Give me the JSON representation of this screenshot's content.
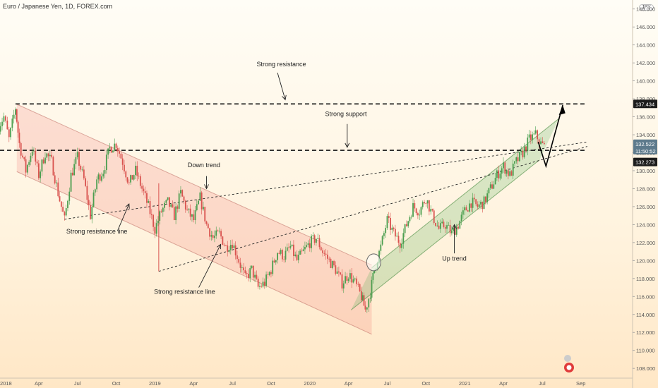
{
  "header": {
    "title": "Euro / Japanese Yen, 1D, FOREX.com",
    "currency": "JPY"
  },
  "chart_data": {
    "type": "candlestick",
    "y_axis": {
      "ticks": [
        108.0,
        110.0,
        112.0,
        114.0,
        116.0,
        118.0,
        120.0,
        122.0,
        124.0,
        126.0,
        128.0,
        130.0,
        132.0,
        134.0,
        136.0,
        138.0,
        140.0,
        142.0,
        144.0,
        146.0,
        148.0
      ],
      "tick_labels": [
        "108.000",
        "110.000",
        "112.000",
        "114.000",
        "116.000",
        "118.000",
        "120.000",
        "122.000",
        "124.000",
        "126.000",
        "128.000",
        "130.000",
        "132.000",
        "134.000",
        "136.000",
        "138.000",
        "140.000",
        "142.000",
        "144.000",
        "146.000",
        "148.000"
      ],
      "ylim": [
        106.6,
        149.0
      ]
    },
    "x_axis": {
      "ticks": [
        0,
        3,
        6,
        9,
        12,
        15,
        18,
        21,
        24,
        27,
        30,
        33,
        36,
        39,
        42,
        45
      ],
      "tick_labels": [
        "2018",
        "Apr",
        "Jul",
        "Oct",
        "2019",
        "Apr",
        "Jul",
        "Oct",
        "2020",
        "Apr",
        "Jul",
        "Oct",
        "2021",
        "Apr",
        "Jul",
        "Sep"
      ],
      "xlim": [
        0,
        48.9
      ]
    },
    "price_path": [
      [
        -0.1,
        135.0
      ],
      [
        0.3,
        136.0
      ],
      [
        0.7,
        133.5
      ],
      [
        1.2,
        137.0
      ],
      [
        1.5,
        133.0
      ],
      [
        2.0,
        130.0
      ],
      [
        2.5,
        132.5
      ],
      [
        3.0,
        129.5
      ],
      [
        3.5,
        132.0
      ],
      [
        4.0,
        131.0
      ],
      [
        4.5,
        127.5
      ],
      [
        5.0,
        124.5
      ],
      [
        5.5,
        129.5
      ],
      [
        6.0,
        131.5
      ],
      [
        6.5,
        129.0
      ],
      [
        7.0,
        125.0
      ],
      [
        7.5,
        129.0
      ],
      [
        8.0,
        130.0
      ],
      [
        8.5,
        132.5
      ],
      [
        9.0,
        133.0
      ],
      [
        9.5,
        131.0
      ],
      [
        10.0,
        128.5
      ],
      [
        10.5,
        130.0
      ],
      [
        11.0,
        128.0
      ],
      [
        11.5,
        126.0
      ],
      [
        12.0,
        123.5
      ],
      [
        12.5,
        125.5
      ],
      [
        13.0,
        126.5
      ],
      [
        13.5,
        125.0
      ],
      [
        14.0,
        127.5
      ],
      [
        14.5,
        125.5
      ],
      [
        15.0,
        124.5
      ],
      [
        15.5,
        127.0
      ],
      [
        16.0,
        124.0
      ],
      [
        16.5,
        122.5
      ],
      [
        17.0,
        123.0
      ],
      [
        17.5,
        121.5
      ],
      [
        18.0,
        122.0
      ],
      [
        18.5,
        120.0
      ],
      [
        19.0,
        118.0
      ],
      [
        19.5,
        119.0
      ],
      [
        20.0,
        117.0
      ],
      [
        20.5,
        117.5
      ],
      [
        21.0,
        119.0
      ],
      [
        21.5,
        121.0
      ],
      [
        22.0,
        120.5
      ],
      [
        22.5,
        121.5
      ],
      [
        23.0,
        120.0
      ],
      [
        23.5,
        121.0
      ],
      [
        24.0,
        122.0
      ],
      [
        24.5,
        122.5
      ],
      [
        25.0,
        121.0
      ],
      [
        25.5,
        120.0
      ],
      [
        26.0,
        119.0
      ],
      [
        26.5,
        117.5
      ],
      [
        27.0,
        118.5
      ],
      [
        27.5,
        117.5
      ],
      [
        28.0,
        116.0
      ],
      [
        28.3,
        114.5
      ],
      [
        28.7,
        116.5
      ],
      [
        29.0,
        119.0
      ],
      [
        29.5,
        121.5
      ],
      [
        30.0,
        124.5
      ],
      [
        30.5,
        123.0
      ],
      [
        31.0,
        122.0
      ],
      [
        31.5,
        124.0
      ],
      [
        32.0,
        126.0
      ],
      [
        32.5,
        125.5
      ],
      [
        33.0,
        127.0
      ],
      [
        33.5,
        125.0
      ],
      [
        34.0,
        123.5
      ],
      [
        34.5,
        124.0
      ],
      [
        35.0,
        123.0
      ],
      [
        35.5,
        124.0
      ],
      [
        36.0,
        125.5
      ],
      [
        36.5,
        126.5
      ],
      [
        37.0,
        126.0
      ],
      [
        37.5,
        126.5
      ],
      [
        38.0,
        128.0
      ],
      [
        38.5,
        129.5
      ],
      [
        39.0,
        130.5
      ],
      [
        39.5,
        129.5
      ],
      [
        40.0,
        131.0
      ],
      [
        40.5,
        132.0
      ],
      [
        41.0,
        133.5
      ],
      [
        41.5,
        134.0
      ],
      [
        41.9,
        133.0
      ],
      [
        42.3,
        132.5
      ]
    ],
    "levels": [
      {
        "price": 137.434,
        "label": "137.434",
        "style": "dashed"
      },
      {
        "price": 132.273,
        "label": "132.273",
        "style": "dashed"
      }
    ],
    "current_price": {
      "value": "132.522",
      "countdown": "11:50:52"
    },
    "annotations": [
      {
        "text": "Strong resistance",
        "x": 21.8,
        "y": 141.6
      },
      {
        "text": "Strong support",
        "x": 26.8,
        "y": 136.1
      },
      {
        "text": "Down trend",
        "x": 15.8,
        "y": 130.4
      },
      {
        "text": "Strong resistance line",
        "x": 7.5,
        "y": 123.0
      },
      {
        "text": "Strong resistance line",
        "x": 14.3,
        "y": 116.3
      },
      {
        "text": "Up trend",
        "x": 35.2,
        "y": 120.0
      }
    ]
  }
}
